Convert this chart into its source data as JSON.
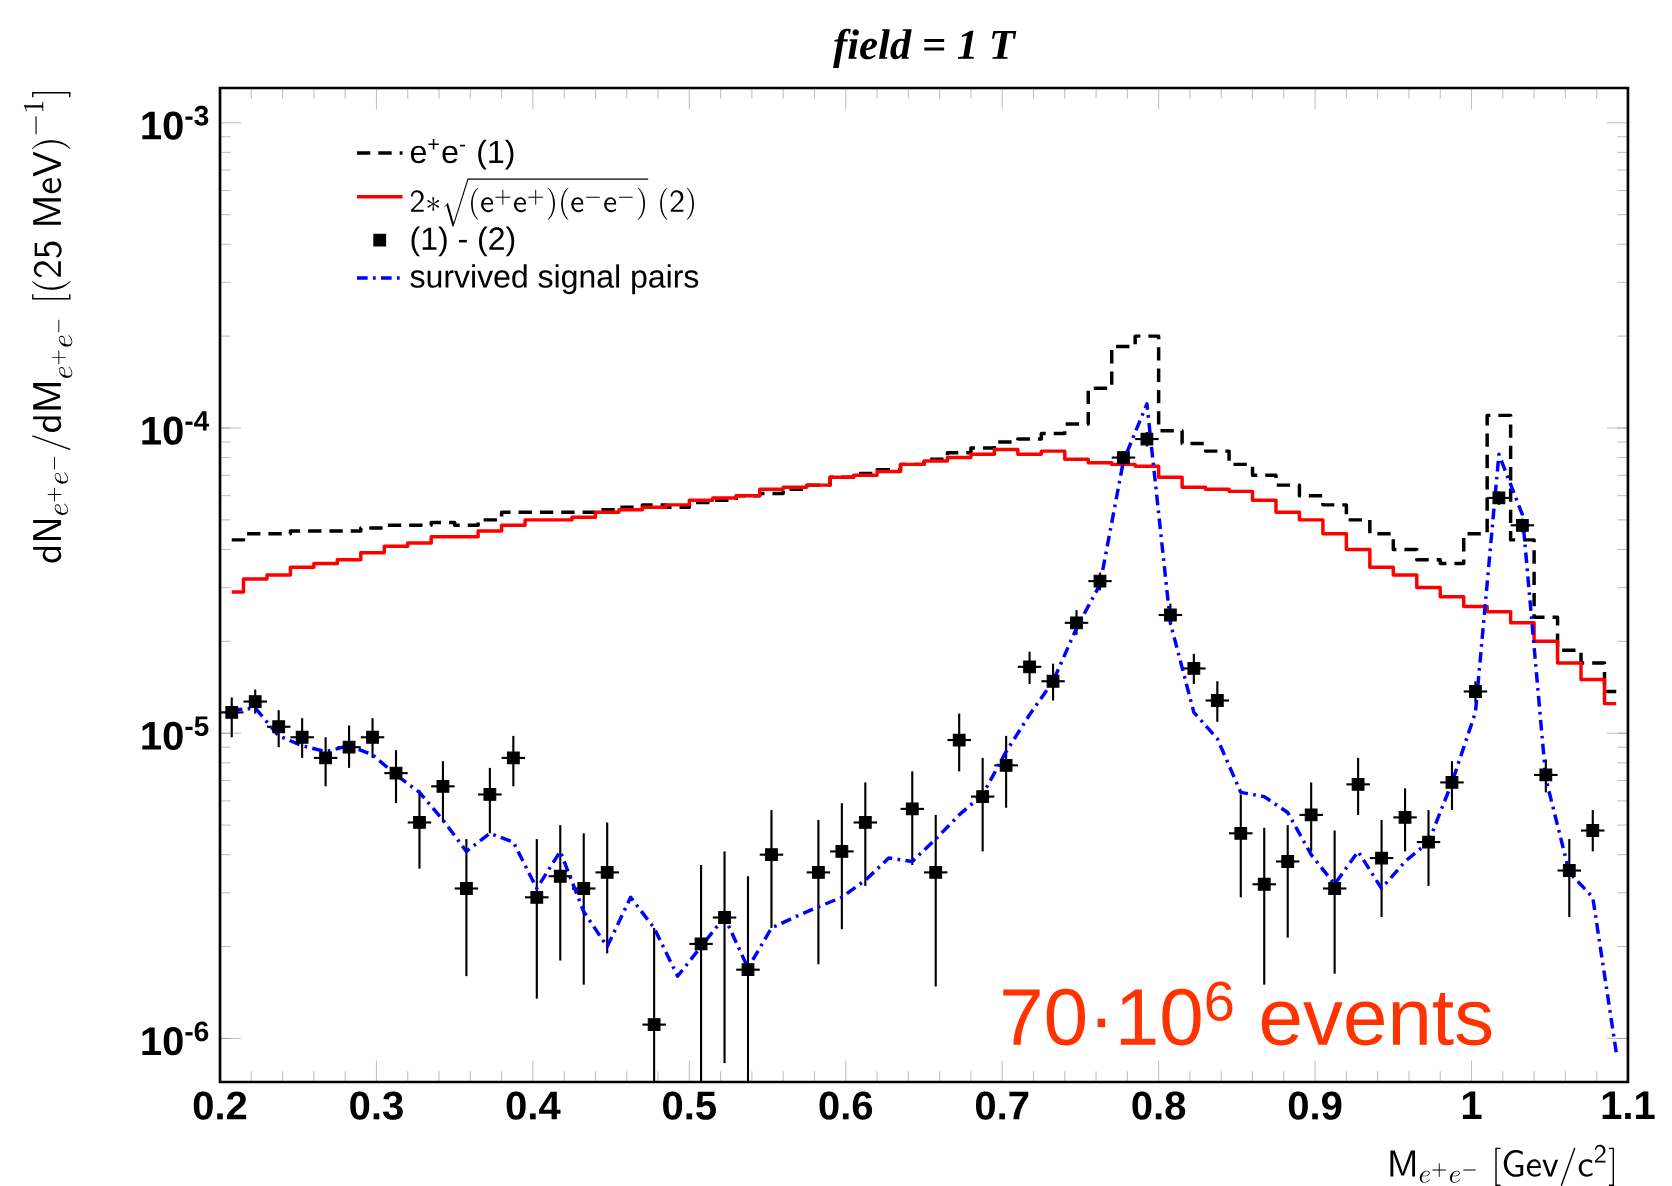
{
  "chart_data": {
    "type": "step",
    "title": "field = 1 T",
    "xlabel": "\\mathsf{M}_{e^{+}e^{-}}\\ \\mathsf{[Gev/c^{2}]}",
    "ylabel": "\\mathsf{dN}_{e^{+}e^{-}}\\mathsf{/dM}_{e^{+}e^{-}}\\ \\mathsf{[(25\\ MeV)}^{-1}\\mathsf{]}",
    "annotations": [
      "70·10$^{6}$ events"
    ],
    "x": [
      0.2075,
      0.2225,
      0.2375,
      0.2525,
      0.2675,
      0.2825,
      0.2975,
      0.3125,
      0.3275,
      0.3425,
      0.3575,
      0.3725,
      0.3875,
      0.4025,
      0.4175,
      0.4325,
      0.4475,
      0.4625,
      0.4775,
      0.4925,
      0.5075,
      0.5225,
      0.5375,
      0.5525,
      0.5675,
      0.5825,
      0.5975,
      0.6125,
      0.6275,
      0.6425,
      0.6575,
      0.6725,
      0.6875,
      0.7025,
      0.7175,
      0.7325,
      0.7475,
      0.7625,
      0.7775,
      0.7925,
      0.8075,
      0.8225,
      0.8375,
      0.8525,
      0.8675,
      0.8825,
      0.8975,
      0.9125,
      0.9275,
      0.9425,
      0.9575,
      0.9725,
      0.9875,
      1.0025,
      1.0175,
      1.0325,
      1.0475,
      1.0625,
      1.0775,
      1.0925
    ],
    "series": [
      {
        "name": "e$^{+}$e$^{-}$ (1)",
        "type": "step",
        "line_style": "dashed",
        "color": "#000000",
        "values": [
          4.3e-05,
          4.5e-05,
          4.5e-05,
          4.6e-05,
          4.6e-05,
          4.6e-05,
          4.7e-05,
          4.8e-05,
          4.8e-05,
          4.9e-05,
          4.8e-05,
          5e-05,
          5.3e-05,
          5.3e-05,
          5.3e-05,
          5.3e-05,
          5.4e-05,
          5.5e-05,
          5.6e-05,
          5.5e-05,
          5.7e-05,
          5.8e-05,
          6e-05,
          6.1e-05,
          6.3e-05,
          6.5e-05,
          6.9e-05,
          7.1e-05,
          7.3e-05,
          7.6e-05,
          7.9e-05,
          8.3e-05,
          8.6e-05,
          9e-05,
          9.2e-05,
          9.6e-05,
          0.000103,
          0.000135,
          0.000185,
          0.0002,
          9.8e-05,
          8.9e-05,
          8.4e-05,
          7.6e-05,
          7e-05,
          6.5e-05,
          6e-05,
          5.6e-05,
          5e-05,
          4.5e-05,
          4e-05,
          3.7e-05,
          3.6e-05,
          4.5e-05,
          0.00011,
          4.3e-05,
          2.4e-05,
          1.87e-05,
          1.7e-05,
          1.37e-05
        ]
      },
      {
        "name": "\\mathsf{2}{*}\\sqrt{(\\mathsf{e}^{+}\\mathsf{e}^{+})(\\mathsf{e}^{-}\\mathsf{e}^{-})}\\ \\mathsf{(2)}",
        "type": "step",
        "line_style": "solid",
        "color": "#ff0000",
        "values": [
          2.9e-05,
          3.2e-05,
          3.3e-05,
          3.5e-05,
          3.6e-05,
          3.7e-05,
          3.9e-05,
          4.1e-05,
          4.2e-05,
          4.4e-05,
          4.4e-05,
          4.6e-05,
          4.8e-05,
          5e-05,
          5e-05,
          5.1e-05,
          5.3e-05,
          5.4e-05,
          5.5e-05,
          5.6e-05,
          5.8e-05,
          5.9e-05,
          6e-05,
          6.3e-05,
          6.4e-05,
          6.5e-05,
          6.9e-05,
          7e-05,
          7.2e-05,
          7.6e-05,
          7.8e-05,
          8e-05,
          8.2e-05,
          8.5e-05,
          8.2e-05,
          8.4e-05,
          7.9e-05,
          7.7e-05,
          7.6e-05,
          7.5e-05,
          6.9e-05,
          6.4e-05,
          6.3e-05,
          6.2e-05,
          5.8e-05,
          5.3e-05,
          5e-05,
          4.5e-05,
          4e-05,
          3.5e-05,
          3.3e-05,
          3e-05,
          2.8e-05,
          2.6e-05,
          2.5e-05,
          2.3e-05,
          2e-05,
          1.7e-05,
          1.5e-05,
          1.25e-05
        ]
      },
      {
        "name": "(1) - (2)",
        "type": "scatter",
        "marker": "square",
        "color": "#000000",
        "values": [
          1.17e-05,
          1.27e-05,
          1.05e-05,
          9.7e-06,
          8.3e-06,
          9e-06,
          9.7e-06,
          7.4e-06,
          5.1e-06,
          6.7e-06,
          3.1e-06,
          6.3e-06,
          8.3e-06,
          2.9e-06,
          3.4e-06,
          3.1e-06,
          3.5e-06,
          null,
          1.11e-06,
          null,
          2.04e-06,
          2.49e-06,
          1.68e-06,
          4e-06,
          null,
          3.5e-06,
          4.1e-06,
          5.1e-06,
          null,
          5.65e-06,
          3.5e-06,
          9.5e-06,
          6.2e-06,
          7.85e-06,
          1.65e-05,
          1.48e-05,
          2.3e-05,
          3.15e-05,
          8e-05,
          9.2e-05,
          2.44e-05,
          1.63e-05,
          1.28e-05,
          4.7e-06,
          3.2e-06,
          3.8e-06,
          5.4e-06,
          3.1e-06,
          6.8e-06,
          3.9e-06,
          5.3e-06,
          4.4e-06,
          6.9e-06,
          1.37e-05,
          5.9e-05,
          4.8e-05,
          7.3e-06,
          3.55e-06,
          4.8e-06,
          null
        ],
        "errors": [
          [
            9.7e-06,
            1.31e-05
          ],
          [
            1.16e-05,
            1.39e-05
          ],
          [
            9e-06,
            1.19e-05
          ],
          [
            8.3e-06,
            1.12e-05
          ],
          [
            6.7e-06,
            9.7e-06
          ],
          [
            7.7e-06,
            1.06e-05
          ],
          [
            8.3e-06,
            1.12e-05
          ],
          [
            5.9e-06,
            8.8e-06
          ],
          [
            3.6e-06,
            6.5e-06
          ],
          [
            5.1e-06,
            8.1e-06
          ],
          [
            1.6e-06,
            4.5e-06
          ],
          [
            4.7e-06,
            7.7e-06
          ],
          [
            6.7e-06,
            9.8e-06
          ],
          [
            1.35e-06,
            4.5e-06
          ],
          [
            1.8e-06,
            5e-06
          ],
          [
            1.5e-06,
            4.7e-06
          ],
          [
            1.9e-06,
            5.1e-06
          ],
          null,
          [
            7.2e-07,
            2.3e-06
          ],
          null,
          [
            7.2e-07,
            3.7e-06
          ],
          [
            8.3e-07,
            4.1e-06
          ],
          [
            7.2e-07,
            3.4e-06
          ],
          [
            2.3e-06,
            5.6e-06
          ],
          null,
          [
            1.75e-06,
            5.2e-06
          ],
          [
            2.28e-06,
            5.9e-06
          ],
          [
            3.16e-06,
            6.9e-06
          ],
          null,
          [
            3.7e-06,
            7.5e-06
          ],
          [
            1.48e-06,
            5.4e-06
          ],
          [
            7.5e-06,
            1.16e-05
          ],
          [
            4.1e-06,
            8.3e-06
          ],
          [
            5.7e-06,
            9.8e-06
          ],
          [
            1.45e-05,
            1.85e-05
          ],
          [
            1.28e-05,
            1.69e-05
          ],
          [
            2.1e-05,
            2.53e-05
          ],
          [
            2.94e-05,
            3.36e-05
          ],
          [
            7.6e-05,
            8.4e-05
          ],
          [
            8.7e-05,
            9.7e-05
          ],
          [
            2.26e-05,
            2.66e-05
          ],
          [
            1.45e-05,
            1.82e-05
          ],
          [
            1.09e-05,
            1.48e-05
          ],
          [
            2.9e-06,
            6.3e-06
          ],
          [
            1.5e-06,
            4.9e-06
          ],
          [
            2.14e-06,
            5e-06
          ],
          [
            4.1e-06,
            6.9e-06
          ],
          [
            1.63e-06,
            4.8e-06
          ],
          [
            5.4e-06,
            8.3e-06
          ],
          [
            2.5e-06,
            5.2e-06
          ],
          [
            4.1e-06,
            6.6e-06
          ],
          [
            3.16e-06,
            5.6e-06
          ],
          [
            5.6e-06,
            8.1e-06
          ],
          [
            1.26e-05,
            1.48e-05
          ],
          [
            5.6e-05,
            6.2e-05
          ],
          [
            4.55e-05,
            5.05e-05
          ],
          [
            6.4e-06,
            8.2e-06
          ],
          [
            2.5e-06,
            4.5e-06
          ],
          [
            4.1e-06,
            5.6e-06
          ],
          null
        ],
        "xerrors": [
          0.0075,
          0.0075,
          0.0075,
          0.0075,
          0.0075,
          0.0075,
          0.0075,
          0.0075,
          0.0075,
          0.0075,
          0.0075,
          0.0075,
          0.0075,
          0.0075,
          0.0075,
          0.0075,
          0.0075,
          null,
          0.0075,
          null,
          0.0075,
          0.0075,
          0.0075,
          0.0075,
          null,
          0.0075,
          0.0075,
          0.0075,
          null,
          0.0075,
          0.0075,
          0.0075,
          0.0075,
          0.0075,
          0.0075,
          0.0075,
          0.0075,
          0.0075,
          0.0075,
          0.0075,
          0.0075,
          0.0075,
          0.0075,
          0.0075,
          0.0075,
          0.0075,
          0.0075,
          0.0075,
          0.0075,
          0.0075,
          0.0075,
          0.0075,
          0.0075,
          0.0075,
          0.0075,
          0.0075,
          0.0075,
          0.0075,
          0.0075,
          null
        ]
      },
      {
        "name": "survived signal pairs",
        "type": "line",
        "line_style": "dashdot",
        "color": "#0000ff",
        "values": [
          1.19e-05,
          1.21e-05,
          9.8e-06,
          9.1e-06,
          8.7e-06,
          9.1e-06,
          8.5e-06,
          7.3e-06,
          6.4e-06,
          5.2e-06,
          4.1e-06,
          4.7e-06,
          4.4e-06,
          3.1e-06,
          4.1e-06,
          2.6e-06,
          2e-06,
          2.9e-06,
          2.3e-06,
          1.6e-06,
          2e-06,
          2.5e-06,
          1.7e-06,
          2.3e-06,
          2.5e-06,
          2.7e-06,
          2.9e-06,
          3.3e-06,
          3.9e-06,
          3.8e-06,
          4.5e-06,
          5.4e-06,
          6.3e-06,
          8.7e-06,
          1.15e-05,
          1.48e-05,
          2.21e-05,
          3.07e-05,
          7.8e-05,
          0.00012,
          2.3e-05,
          1.17e-05,
          9.6e-06,
          6.4e-06,
          6.2e-06,
          5.5e-06,
          4e-06,
          3.2e-06,
          4.1e-06,
          3.1e-06,
          3.8e-06,
          4.4e-06,
          6.9e-06,
          1.17e-05,
          8.2e-05,
          5.2e-05,
          7.1e-06,
          3.5e-06,
          2.9e-06,
          9e-07
        ]
      }
    ],
    "log": "y",
    "xlim": [
      0.2,
      1.1
    ],
    "ylim": [
      7.2e-07,
      0.0013
    ],
    "xticks": [
      0.2,
      0.3,
      0.4,
      0.5,
      0.6,
      0.7,
      0.8,
      0.9,
      1,
      1.1
    ],
    "yticks": [
      {
        "value": 1e-06,
        "label": "10$^{-6}$"
      },
      {
        "value": 1e-05,
        "label": "10$^{-5}$"
      },
      {
        "value": 0.0001,
        "label": "10$^{-4}$"
      },
      {
        "value": 0.001,
        "label": "10$^{-3}$"
      }
    ],
    "grid": false,
    "legend": "top left"
  }
}
